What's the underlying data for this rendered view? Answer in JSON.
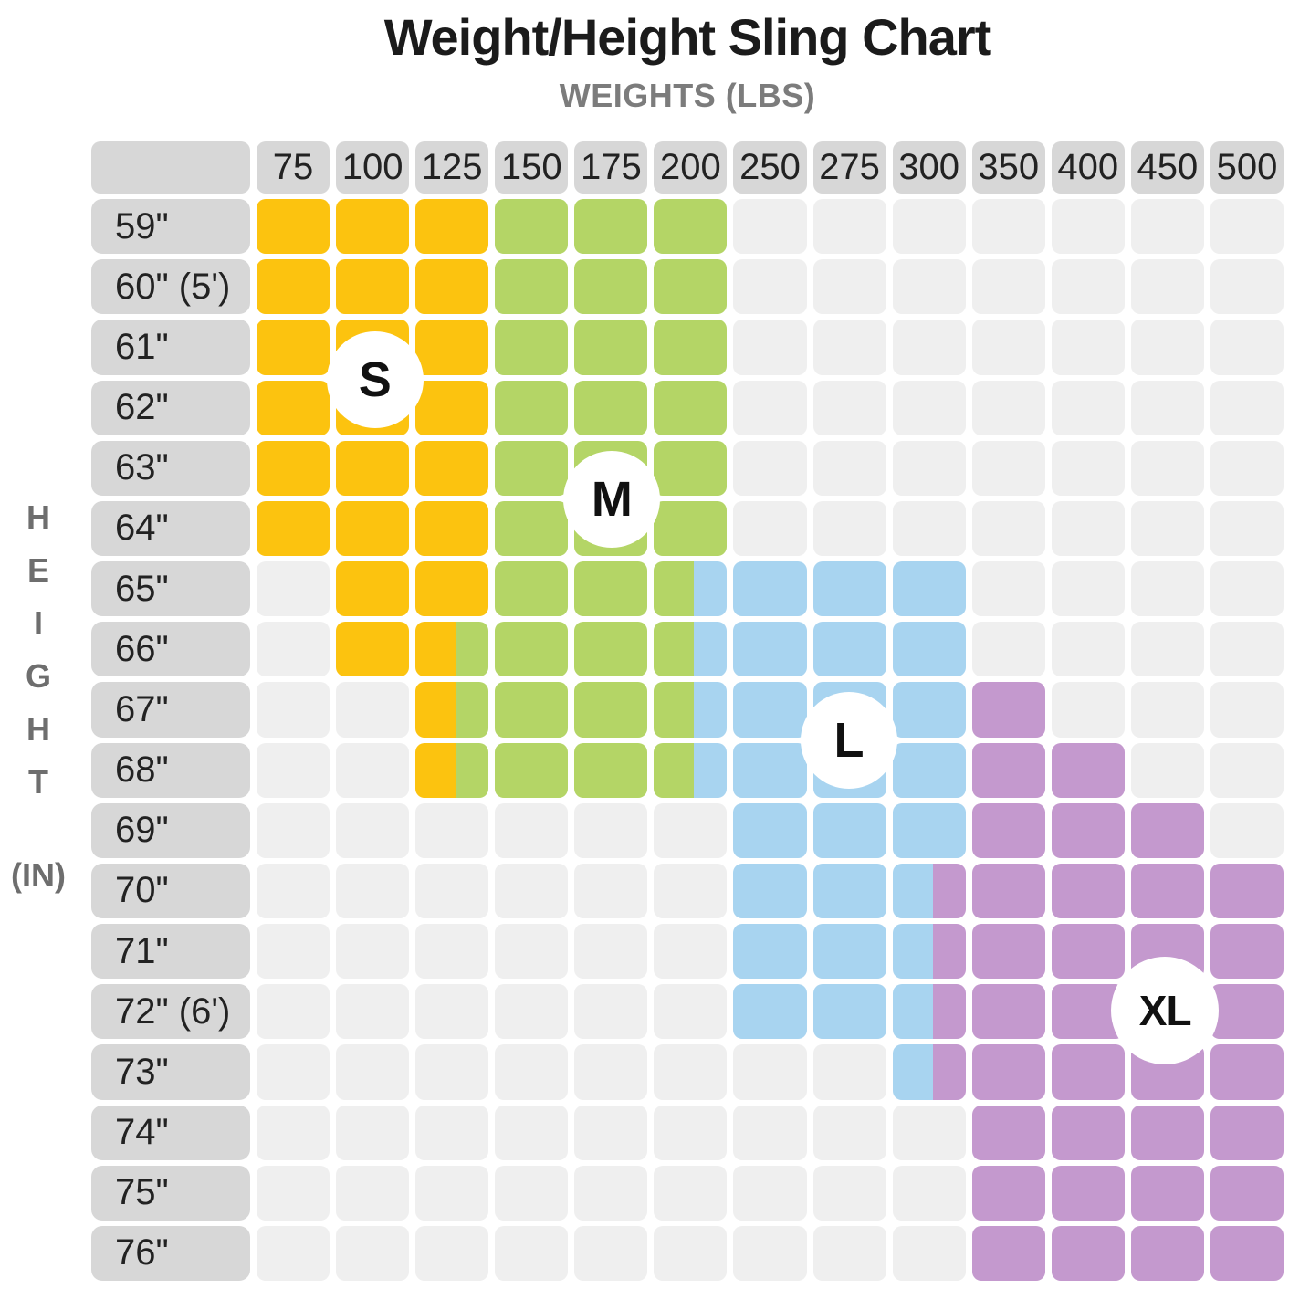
{
  "title": "Weight/Height Sling Chart",
  "x_axis_title": "WEIGHTS (LBS)",
  "y_axis_title": "HEIGHT",
  "y_axis_unit": "(IN)",
  "chart_data": {
    "type": "heatmap",
    "x_categories": [
      "75",
      "100",
      "125",
      "150",
      "175",
      "200",
      "250",
      "275",
      "300",
      "350",
      "400",
      "450",
      "500"
    ],
    "y_categories": [
      "59\"",
      "60\" (5')",
      "61\"",
      "62\"",
      "63\"",
      "64\"",
      "65\"",
      "66\"",
      "67\"",
      "68\"",
      "69\"",
      "70\"",
      "71\"",
      "72\" (6')",
      "73\"",
      "74\"",
      "75\"",
      "76\""
    ],
    "legend": {
      "S": "#fcc30f",
      "M": "#b4d566",
      "L": "#a8d4f0",
      "XL": "#c499ce"
    },
    "empty_color": "#efefef",
    "header_color": "#d7d7d7",
    "split_fraction": 0.55,
    "cells": [
      [
        "S",
        "S",
        "S",
        "M",
        "M",
        "M",
        "",
        "",
        "",
        "",
        "",
        "",
        ""
      ],
      [
        "S",
        "S",
        "S",
        "M",
        "M",
        "M",
        "",
        "",
        "",
        "",
        "",
        "",
        ""
      ],
      [
        "S",
        "S",
        "S",
        "M",
        "M",
        "M",
        "",
        "",
        "",
        "",
        "",
        "",
        ""
      ],
      [
        "S",
        "S",
        "S",
        "M",
        "M",
        "M",
        "",
        "",
        "",
        "",
        "",
        "",
        ""
      ],
      [
        "S",
        "S",
        "S",
        "M",
        "M",
        "M",
        "",
        "",
        "",
        "",
        "",
        "",
        ""
      ],
      [
        "S",
        "S",
        "S",
        "M",
        "M",
        "M",
        "",
        "",
        "",
        "",
        "",
        "",
        ""
      ],
      [
        "",
        "S",
        "S",
        "M",
        "M",
        "M/L",
        "L",
        "L",
        "L",
        "",
        "",
        "",
        ""
      ],
      [
        "",
        "S",
        "S/M",
        "M",
        "M",
        "M/L",
        "L",
        "L",
        "L",
        "",
        "",
        "",
        ""
      ],
      [
        "",
        "",
        "S/M",
        "M",
        "M",
        "M/L",
        "L",
        "L",
        "L",
        "XL",
        "",
        "",
        ""
      ],
      [
        "",
        "",
        "S/M",
        "M",
        "M",
        "M/L",
        "L",
        "L",
        "L",
        "XL",
        "XL",
        "",
        ""
      ],
      [
        "",
        "",
        "",
        "",
        "",
        "",
        "L",
        "L",
        "L",
        "XL",
        "XL",
        "XL",
        ""
      ],
      [
        "",
        "",
        "",
        "",
        "",
        "",
        "L",
        "L",
        "L/XL",
        "XL",
        "XL",
        "XL",
        "XL"
      ],
      [
        "",
        "",
        "",
        "",
        "",
        "",
        "L",
        "L",
        "L/XL",
        "XL",
        "XL",
        "XL",
        "XL"
      ],
      [
        "",
        "",
        "",
        "",
        "",
        "",
        "L",
        "L",
        "L/XL",
        "XL",
        "XL",
        "XL",
        "XL"
      ],
      [
        "",
        "",
        "",
        "",
        "",
        "",
        "",
        "",
        "L/XL",
        "XL",
        "XL",
        "XL",
        "XL"
      ],
      [
        "",
        "",
        "",
        "",
        "",
        "",
        "",
        "",
        "",
        "XL",
        "XL",
        "XL",
        "XL"
      ],
      [
        "",
        "",
        "",
        "",
        "",
        "",
        "",
        "",
        "",
        "XL",
        "XL",
        "XL",
        "XL"
      ],
      [
        "",
        "",
        "",
        "",
        "",
        "",
        "",
        "",
        "",
        "XL",
        "XL",
        "XL",
        "XL"
      ]
    ],
    "badges": [
      {
        "label": "S",
        "col": 1,
        "row": 3.0
      },
      {
        "label": "M",
        "col": 4,
        "row": 5.0
      },
      {
        "label": "L",
        "col": 7,
        "row": 9.0
      },
      {
        "label": "XL",
        "col": 11,
        "row": 13.5
      }
    ]
  }
}
